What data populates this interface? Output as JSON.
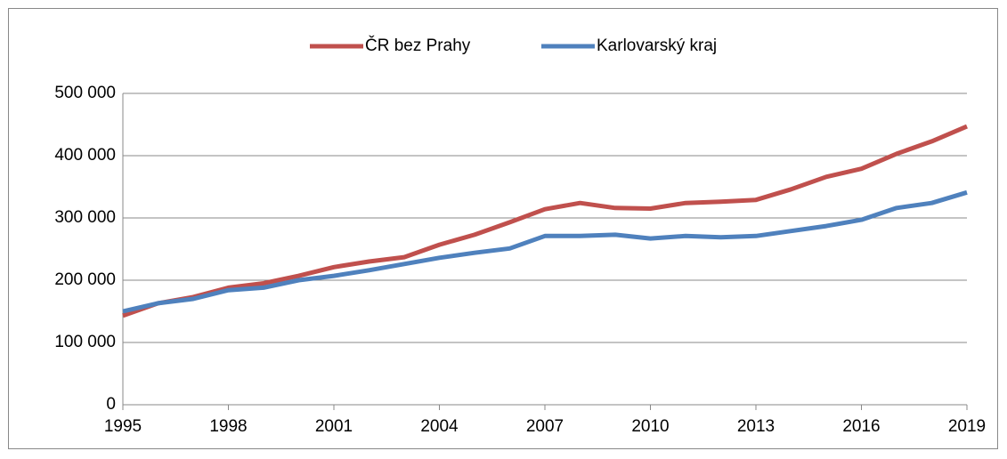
{
  "chart_data": {
    "type": "line",
    "x": [
      1995,
      1996,
      1997,
      1998,
      1999,
      2000,
      2001,
      2002,
      2003,
      2004,
      2005,
      2006,
      2007,
      2008,
      2009,
      2010,
      2011,
      2012,
      2013,
      2014,
      2015,
      2016,
      2017,
      2018,
      2019
    ],
    "series": [
      {
        "name": "ČR bez Prahy",
        "color": "#c0504d",
        "values": [
          143000,
          163000,
          173000,
          188000,
          195000,
          207000,
          221000,
          230000,
          237000,
          257000,
          273000,
          293000,
          314000,
          324000,
          316000,
          315000,
          324000,
          326000,
          329000,
          346000,
          366000,
          379000,
          403000,
          423000,
          447000
        ]
      },
      {
        "name": "Karlovarský kraj",
        "color": "#4f81bd",
        "values": [
          150000,
          163000,
          170000,
          184000,
          188000,
          200000,
          207000,
          216000,
          226000,
          236000,
          244000,
          251000,
          271000,
          271000,
          273000,
          267000,
          271000,
          269000,
          271000,
          279000,
          287000,
          297000,
          316000,
          324000,
          341000
        ]
      }
    ],
    "xlim": [
      1995,
      2019
    ],
    "xticks": [
      1995,
      1998,
      2001,
      2004,
      2007,
      2010,
      2013,
      2016,
      2019
    ],
    "ylim": [
      0,
      500000
    ],
    "yticks": [
      0,
      {
        "value": 100000,
        "label": "100 000"
      },
      {
        "value": 200000,
        "label": "200 000"
      },
      {
        "value": 300000,
        "label": "300 000"
      },
      {
        "value": 400000,
        "label": "400 000"
      },
      {
        "value": 500000,
        "label": "500 000"
      }
    ],
    "grid": true,
    "legend": "top"
  }
}
